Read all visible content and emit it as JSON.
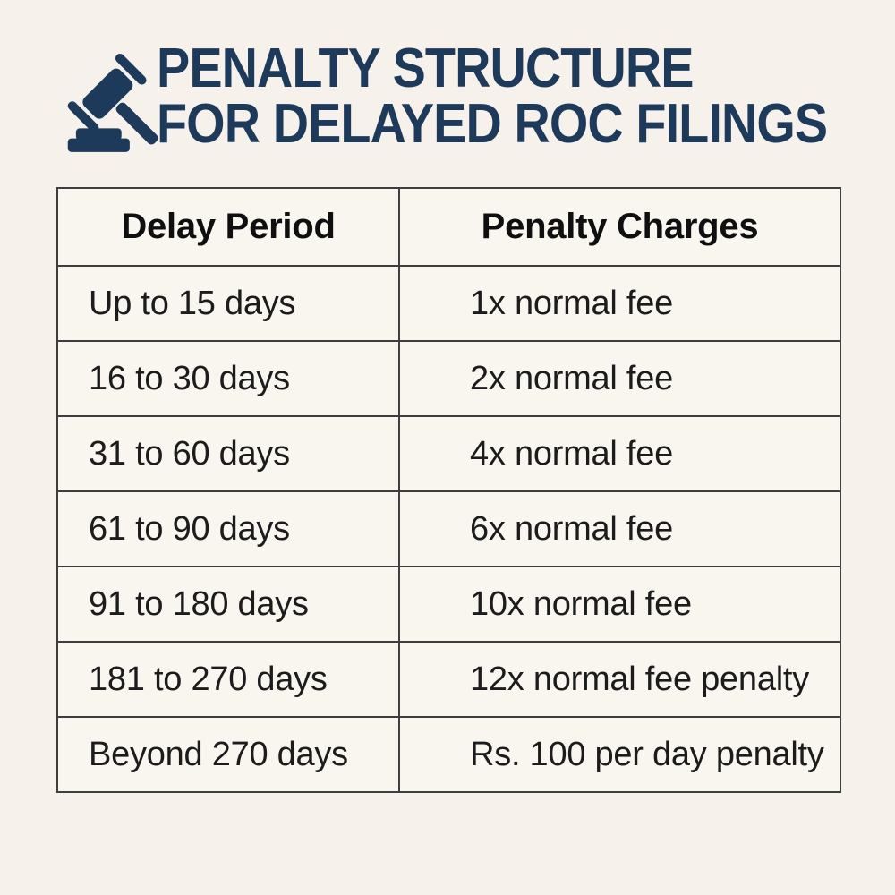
{
  "header": {
    "title_line1": "PENALTY STRUCTURE",
    "title_line2": "FOR DELAYED ROC FILINGS",
    "icon": "gavel-icon"
  },
  "table": {
    "columns": [
      "Delay Period",
      "Penalty Charges"
    ],
    "rows": [
      [
        "Up to 15 days",
        "1x normal fee"
      ],
      [
        "16 to 30 days",
        "2x normal fee"
      ],
      [
        "31 to 60 days",
        "4x normal fee"
      ],
      [
        "61 to 90 days",
        "6x normal fee"
      ],
      [
        "91 to 180 days",
        "10x normal fee"
      ],
      [
        "181 to 270 days",
        "12x normal fee penalty"
      ],
      [
        "Beyond 270 days",
        "Rs. 100 per day penalty"
      ]
    ]
  },
  "colors": {
    "page_background": "#f6f1ea",
    "cell_background": "#f9f5ef",
    "table_border": "#3e3e3e",
    "title_navy": "#1e3a5a",
    "header_text": "#0f0f0f",
    "cell_text": "#1c1c1c"
  }
}
